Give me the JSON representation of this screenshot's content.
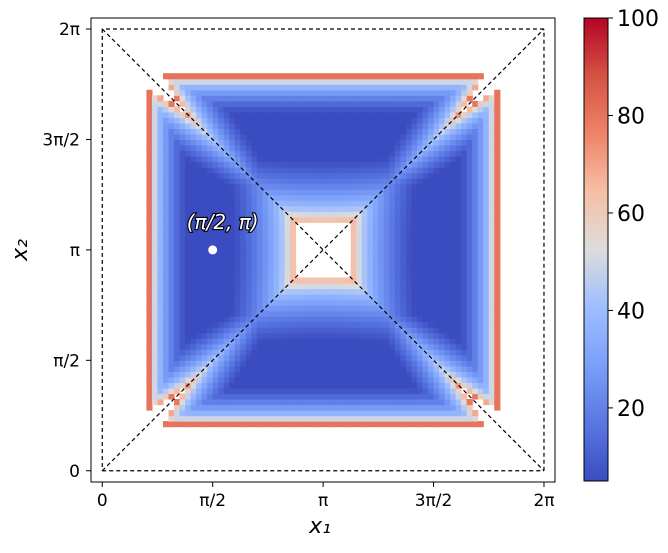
{
  "chart_data": {
    "type": "heatmap",
    "title": "",
    "xlabel": "x₁",
    "ylabel": "x₂",
    "xlim": [
      -0.16,
      6.44
    ],
    "ylim": [
      -0.16,
      6.44
    ],
    "xticks": [
      0,
      1.5708,
      3.1416,
      4.7124,
      6.2832
    ],
    "xtick_labels": [
      "0",
      "π/2",
      "π",
      "3π/2",
      "2π"
    ],
    "yticks": [
      0,
      1.5708,
      3.1416,
      4.7124,
      6.2832
    ],
    "ytick_labels": [
      "0",
      "π/2",
      "π",
      "3π/2",
      "2π"
    ],
    "grid": false,
    "colormap": "coolwarm",
    "colorbar": {
      "range": [
        5,
        100
      ],
      "ticks": [
        20,
        40,
        60,
        80,
        100
      ],
      "tick_labels": [
        "20",
        "40",
        "60",
        "80",
        "100"
      ]
    },
    "regions": [
      {
        "center": [
          3.1416,
          4.7124
        ],
        "orientation": "top"
      },
      {
        "center": [
          3.1416,
          1.5708
        ],
        "orientation": "bottom"
      },
      {
        "center": [
          1.5708,
          3.1416
        ],
        "orientation": "left"
      },
      {
        "center": [
          4.7124,
          3.1416
        ],
        "orientation": "right"
      }
    ],
    "dashed_lines": [
      {
        "from": [
          0,
          0
        ],
        "to": [
          6.2832,
          6.2832
        ]
      },
      {
        "from": [
          0,
          6.2832
        ],
        "to": [
          6.2832,
          0
        ]
      },
      {
        "from": [
          0,
          0
        ],
        "to": [
          6.2832,
          0
        ]
      },
      {
        "from": [
          6.2832,
          0
        ],
        "to": [
          6.2832,
          6.2832
        ]
      },
      {
        "from": [
          6.2832,
          6.2832
        ],
        "to": [
          0,
          6.2832
        ]
      },
      {
        "from": [
          0,
          6.2832
        ],
        "to": [
          0,
          0
        ]
      }
    ],
    "annotations": [
      {
        "text": "(π/2, π)",
        "point": [
          1.5708,
          3.1416
        ],
        "marker_color": "#ffffff"
      }
    ]
  }
}
